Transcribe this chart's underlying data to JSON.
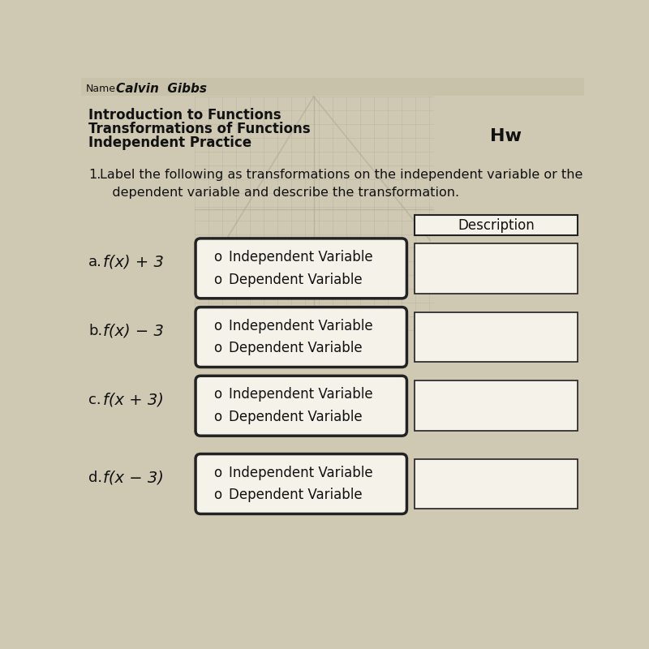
{
  "title_lines": [
    "Introduction to Functions",
    "Transformations of Functions",
    "Independent Practice"
  ],
  "question_number": "1.",
  "question_text": "Label the following as transformations on the independent variable or the\n   dependent variable and describe the transformation.",
  "description_header": "Description",
  "items": [
    {
      "label": "a.",
      "func": "f(x) + 3"
    },
    {
      "label": "b.",
      "func": "f(x) − 3"
    },
    {
      "label": "c.",
      "func": "f(x + 3)"
    },
    {
      "label": "d.",
      "func": "f(x − 3)"
    }
  ],
  "options": [
    "Independent Variable",
    "Dependent Variable"
  ],
  "bg_color": "#cfc9b4",
  "paper_color": "#ddd8c4",
  "box_facecolor": "#f5f2ea",
  "text_color": "#111111",
  "border_color": "#222222",
  "grid_color": "#b0ab98",
  "title_fontsize": 12,
  "label_fontsize": 13,
  "option_fontsize": 12,
  "question_fontsize": 11.5,
  "name_line": "Name _________________",
  "hw_label": "Hw"
}
